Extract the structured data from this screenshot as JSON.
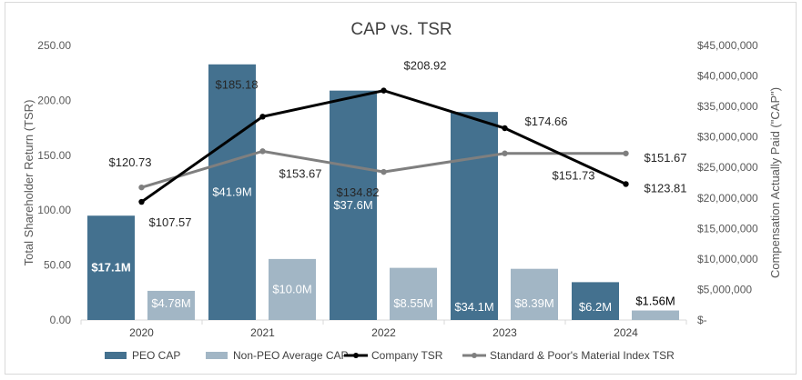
{
  "chart_data": {
    "type": "bar",
    "title": "CAP vs. TSR",
    "categories": [
      "2020",
      "2021",
      "2022",
      "2023",
      "2024"
    ],
    "y_left": {
      "label": "Total Shareholder Return (TSR)",
      "range": [
        0,
        250
      ],
      "ticks": [
        "0.00",
        "50.00",
        "100.00",
        "150.00",
        "200.00",
        "250.00"
      ],
      "tick_values": [
        0,
        50,
        100,
        150,
        200,
        250
      ]
    },
    "y_right": {
      "label": "Compensation Actually Paid (\"CAP\")",
      "range": [
        0,
        45000000
      ],
      "ticks": [
        "$-",
        "$5,000,000",
        "$10,000,000",
        "$15,000,000",
        "$20,000,000",
        "$25,000,000",
        "$30,000,000",
        "$35,000,000",
        "$40,000,000",
        "$45,000,000"
      ],
      "tick_values": [
        0,
        5000000,
        10000000,
        15000000,
        20000000,
        25000000,
        30000000,
        35000000,
        40000000,
        45000000
      ]
    },
    "grid": false,
    "legend_position": "bottom",
    "series": [
      {
        "name": "PEO CAP",
        "type": "bar",
        "axis": "right",
        "color": "#44718f",
        "values": [
          17100000,
          41900000,
          37600000,
          34100000,
          6200000
        ],
        "labels": [
          "$17.1M",
          "$41.9M",
          "$37.6M",
          "$34.1M",
          "$6.2M"
        ]
      },
      {
        "name": "Non-PEO Average CAP",
        "type": "bar",
        "axis": "right",
        "color": "#a2b6c5",
        "values": [
          4780000,
          10000000,
          8550000,
          8390000,
          1560000
        ],
        "labels": [
          "$4.78M",
          "$10.0M",
          "$8.55M",
          "$8.39M",
          "$1.56M"
        ]
      },
      {
        "name": "Company TSR",
        "type": "line",
        "axis": "left",
        "color": "#000000",
        "values": [
          107.57,
          185.18,
          208.92,
          174.66,
          123.81
        ],
        "labels": [
          "$107.57",
          "$185.18",
          "$208.92",
          "$174.66",
          "$123.81"
        ]
      },
      {
        "name": "Standard & Poor's Material Index TSR",
        "type": "line",
        "axis": "left",
        "color": "#7f7f7f",
        "values": [
          120.73,
          153.67,
          134.82,
          151.73,
          151.67
        ],
        "labels": [
          "$120.73",
          "$153.67",
          "$134.82",
          "$151.73",
          "$151.67"
        ]
      }
    ]
  }
}
